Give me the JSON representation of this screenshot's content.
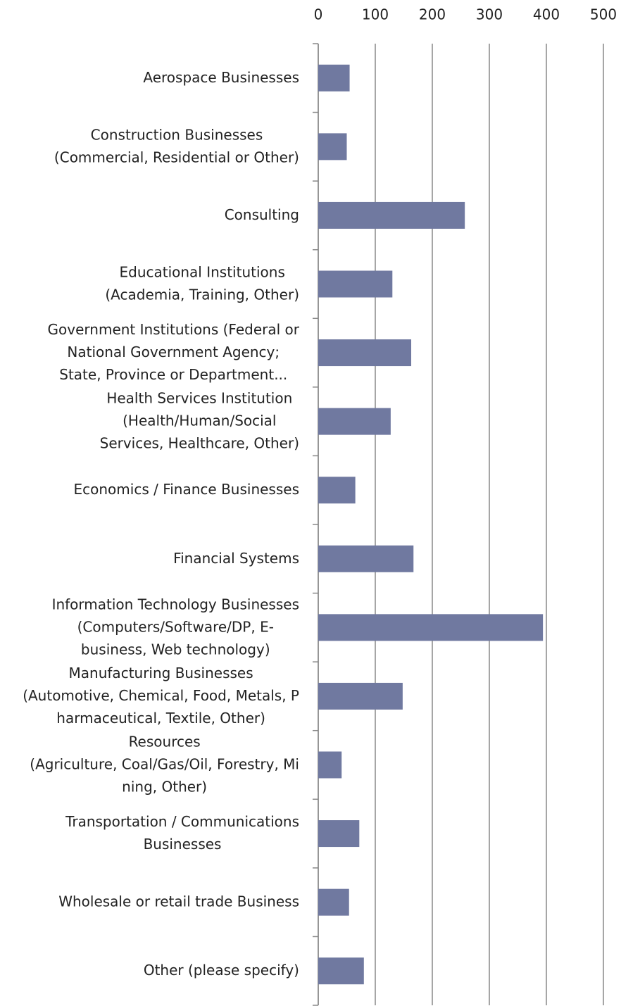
{
  "chart_data": {
    "type": "bar",
    "orientation": "horizontal",
    "categories": [
      "Aerospace Businesses",
      "Construction Businesses\n(Commercial, Residential or Other)",
      "Consulting",
      "Educational Institutions\n(Academia, Training, Other)",
      "Government Institutions (Federal or\nNational Government Agency;\nState, Province or Department...",
      "Health Services Institution\n(Health/Human/Social\nServices, Healthcare, Other)",
      "Economics / Finance Businesses",
      "Financial Systems",
      "Information Technology Businesses\n(Computers/Software/DP, E-\nbusiness, Web technology)",
      "Manufacturing Businesses\n(Automotive, Chemical, Food, Metals, P\nharmaceutical, Textile, Other)",
      "Resources\n(Agriculture, Coal/Gas/Oil, Forestry, Mi\nning, Other)",
      "Transportation / Communications\nBusinesses",
      "Wholesale or retail trade Business",
      "Other (please specify)"
    ],
    "values": [
      55,
      50,
      257,
      130,
      163,
      127,
      65,
      167,
      394,
      148,
      41,
      72,
      54,
      80
    ],
    "color": "#7079a0",
    "xlim": [
      0,
      500
    ],
    "xticks": [
      0,
      100,
      200,
      300,
      400,
      500
    ],
    "grid": true
  }
}
